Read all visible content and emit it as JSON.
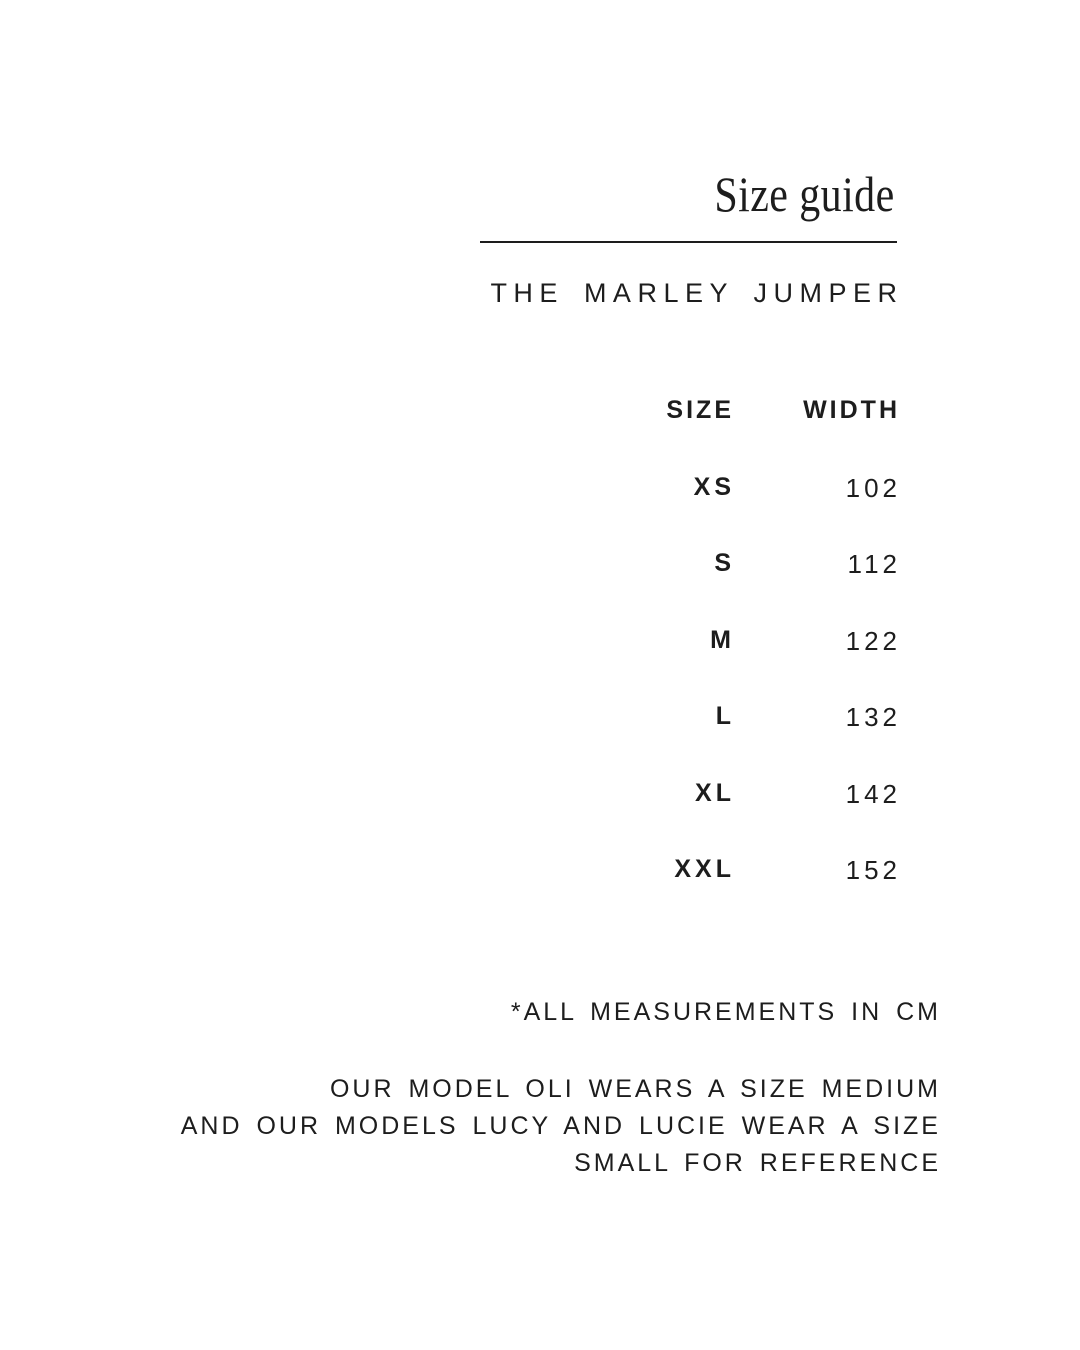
{
  "page": {
    "background": "#ffffff",
    "text_color": "#1d1d1d",
    "divider_color": "#1d1d1d"
  },
  "header": {
    "title": "Size guide",
    "product_name": "THE MARLEY JUMPER"
  },
  "size_table": {
    "columns": [
      "SIZE",
      "WIDTH"
    ],
    "rows": [
      {
        "size": "XS",
        "width": "102"
      },
      {
        "size": "S",
        "width": "112"
      },
      {
        "size": "M",
        "width": "122"
      },
      {
        "size": "L",
        "width": "132"
      },
      {
        "size": "XL",
        "width": "142"
      },
      {
        "size": "XXL",
        "width": "152"
      }
    ]
  },
  "notes": {
    "measurement_note": "*ALL MEASUREMENTS IN CM",
    "model_note_lines": [
      "OUR MODEL OLI WEARS A SIZE MEDIUM",
      "AND OUR MODELS LUCY AND LUCIE WEAR A SIZE",
      "SMALL FOR REFERENCE"
    ]
  }
}
